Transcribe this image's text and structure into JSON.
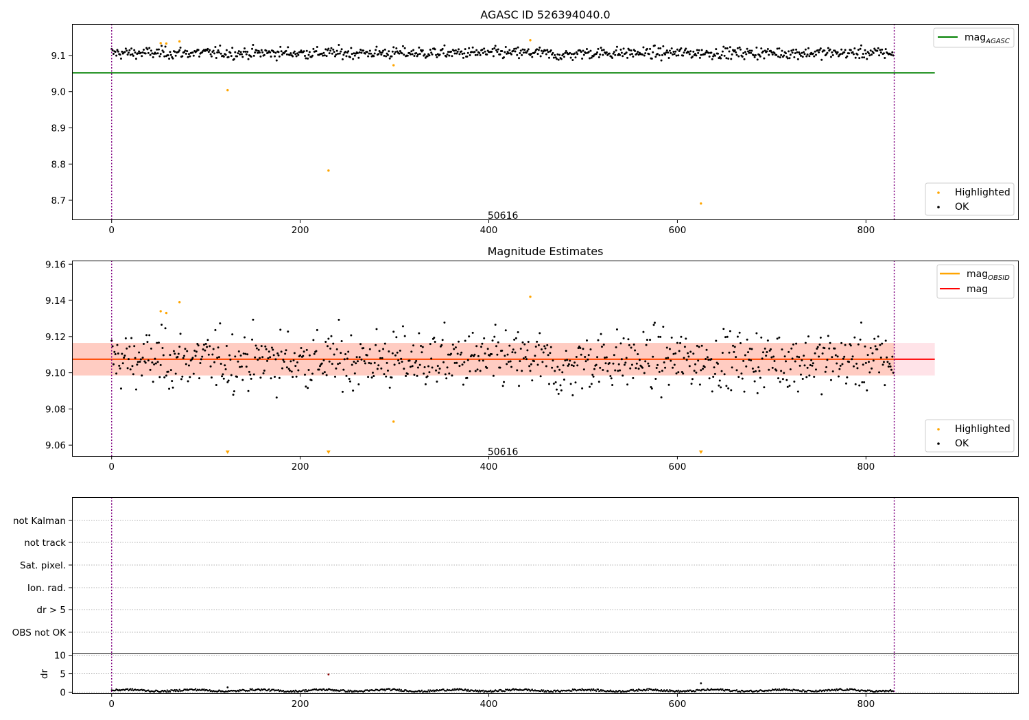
{
  "chart_data": [
    {
      "type": "scatter",
      "title": "AGASC ID 526394040.0",
      "xlim": [
        -42,
        962
      ],
      "ylim": [
        8.647,
        9.187
      ],
      "xticks": [
        0,
        200,
        400,
        600,
        800
      ],
      "yticks": [
        8.7,
        8.8,
        8.9,
        9.0,
        9.1
      ],
      "ytick_labels": [
        "8.7",
        "8.8",
        "8.9",
        "9.0",
        "9.1"
      ],
      "obsid_boundaries": [
        0,
        830
      ],
      "obsid_label": {
        "text": "50616",
        "x": 415,
        "y": 8.658
      },
      "n_points": 830,
      "ok_series": {
        "name": "OK",
        "mean": 9.107,
        "std": 0.0085,
        "color": "#000000"
      },
      "highlighted": {
        "name": "Highlighted",
        "color": "#ffa500",
        "points": [
          [
            52,
            9.134
          ],
          [
            58,
            9.133
          ],
          [
            72,
            9.139
          ],
          [
            123,
            9.004
          ],
          [
            230,
            8.782
          ],
          [
            299,
            9.073
          ],
          [
            444,
            9.142
          ],
          [
            625,
            8.691
          ]
        ]
      },
      "lines": [
        {
          "name": "mag_AGASC",
          "y": 9.052,
          "x": [
            -42,
            873
          ],
          "color": "#008000"
        }
      ],
      "legend_upper": [
        {
          "label": "mag",
          "sub": "AGASC",
          "color": "#008000"
        }
      ],
      "legend_lower": [
        {
          "label": "Highlighted",
          "color": "#ffa500"
        },
        {
          "label": "OK",
          "color": "#000000"
        }
      ]
    },
    {
      "type": "scatter",
      "title": "Magnitude Estimates",
      "xlim": [
        -42,
        962
      ],
      "ylim": [
        9.054,
        9.162
      ],
      "xticks": [
        0,
        200,
        400,
        600,
        800
      ],
      "yticks": [
        9.06,
        9.08,
        9.1,
        9.12,
        9.14,
        9.16
      ],
      "ytick_labels": [
        "9.06",
        "9.08",
        "9.10",
        "9.12",
        "9.14",
        "9.16"
      ],
      "obsid_boundaries": [
        0,
        830
      ],
      "obsid_label": {
        "text": "50616",
        "x": 415,
        "y": 9.0565
      },
      "ok_series": {
        "name": "OK",
        "mean": 9.107,
        "std": 0.0085,
        "color": "#000000"
      },
      "highlighted": {
        "name": "Highlighted",
        "color": "#ffa500",
        "points": [
          [
            52,
            9.134
          ],
          [
            58,
            9.133
          ],
          [
            72,
            9.139
          ],
          [
            299,
            9.073
          ],
          [
            444,
            9.142
          ]
        ],
        "offscale_markers_x": [
          123,
          230,
          625
        ]
      },
      "mag_line": {
        "name": "mag",
        "y": 9.1075,
        "x": [
          -42,
          873
        ],
        "color": "#ff0000"
      },
      "mag_obsid_line": {
        "name": "mag_OBSID",
        "y": 9.1075,
        "x": [
          -42,
          830
        ],
        "color": "#ffa500"
      },
      "bands": [
        {
          "x": [
            -42,
            873
          ],
          "y": [
            9.0985,
            9.1165
          ],
          "color": "#ffc0cb"
        },
        {
          "x": [
            -42,
            830
          ],
          "y": [
            9.0985,
            9.1165
          ],
          "color": "#ffa07a"
        }
      ],
      "legend_upper": [
        {
          "label": "mag",
          "sub": "OBSID",
          "color": "#ffa500"
        },
        {
          "label": "mag",
          "sub": "",
          "color": "#ff0000"
        }
      ],
      "legend_lower": [
        {
          "label": "Highlighted",
          "color": "#ffa500"
        },
        {
          "label": "OK",
          "color": "#000000"
        }
      ]
    },
    {
      "type": "scatter",
      "title": "",
      "xlim": [
        -42,
        962
      ],
      "category_labels": [
        "not Kalman",
        "not track",
        "Sat. pixel.",
        "Ion. rad.",
        "dr > 5",
        "OBS not OK"
      ],
      "obsid_boundaries": [
        0,
        830
      ],
      "flagged_points": []
    },
    {
      "type": "scatter",
      "title": "",
      "ylabel": "dr",
      "xlim": [
        -42,
        962
      ],
      "ylim": [
        -0.3,
        10.5
      ],
      "xticks": [
        0,
        200,
        400,
        600,
        800
      ],
      "yticks": [
        0,
        5,
        10
      ],
      "ytick_labels": [
        "0",
        "5",
        "10"
      ],
      "obsid_boundaries": [
        0,
        830
      ],
      "n_points": 830,
      "dr_mean": 0.45,
      "special_points": [
        [
          230,
          4.8,
          "#8b0000"
        ],
        [
          625,
          2.4,
          "#000000"
        ],
        [
          123,
          1.3,
          "#000000"
        ]
      ]
    }
  ]
}
